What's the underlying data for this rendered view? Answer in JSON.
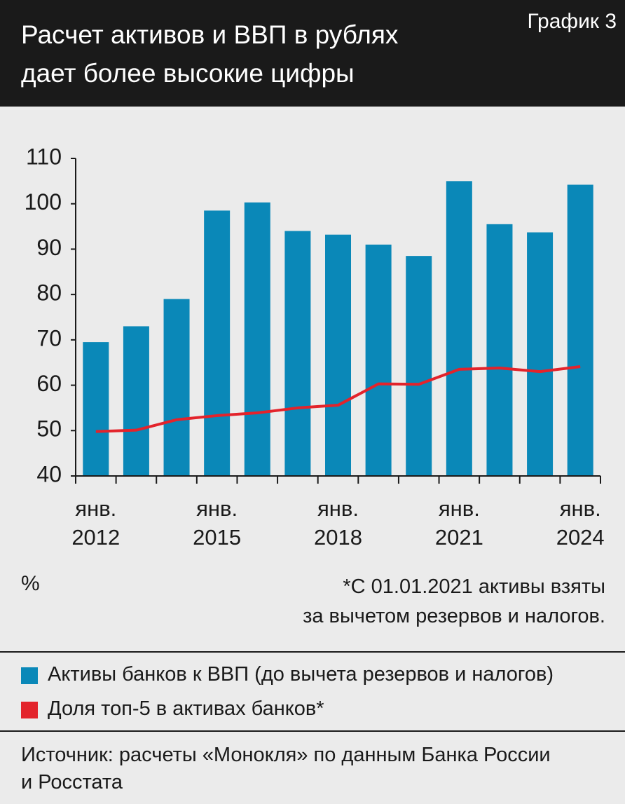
{
  "chart_data": {
    "type": "bar",
    "title": "Расчет активов и ВВП в рублях\nдает более высокие цифры",
    "label": "График 3",
    "y_axis_label": "%",
    "annotation": "*С 01.01.2021 активы взяты\nза вычетом резервов и налогов.",
    "source": "Источник: расчеты «Монокля» по данным Банка России\nи Росстата",
    "categories": [
      "янв.\n2012",
      null,
      null,
      "янв.\n2015",
      null,
      null,
      "янв.\n2018",
      null,
      null,
      "янв.\n2021",
      null,
      null,
      "янв.\n2024"
    ],
    "series": [
      {
        "name": "Активы банков к ВВП (до вычета резервов и налогов)",
        "type": "bar",
        "color": "#0a88b8",
        "values": [
          69.5,
          73,
          79,
          98.5,
          100.3,
          94,
          93.2,
          91,
          88.5,
          105,
          95.5,
          93.7,
          104.2
        ]
      },
      {
        "name": "Доля топ-5 в активах банков*",
        "type": "line",
        "color": "#e3232b",
        "values": [
          49.8,
          50.1,
          52.4,
          53.3,
          53.9,
          55,
          55.6,
          60.3,
          60.2,
          63.5,
          63.8,
          63,
          64.1
        ]
      }
    ],
    "ylim": [
      40,
      110
    ],
    "yticks": [
      40,
      50,
      60,
      70,
      80,
      90,
      100,
      110
    ]
  }
}
